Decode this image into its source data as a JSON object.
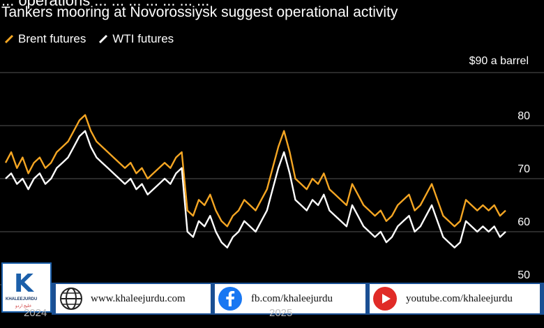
{
  "headline_partial": "... operations ... ... ... ... ... ... ...",
  "subtitle": "Tankers mooring at Novorossiysk suggest operational activity",
  "unit_label": "$90 a barrel",
  "colors": {
    "brent": "#f5a623",
    "wti": "#ffffff",
    "background": "#000000",
    "grid": "#555555"
  },
  "x_axis": {
    "labels": [
      "2024",
      "2025"
    ]
  },
  "social": {
    "website": "www.khaleejurdu.com",
    "facebook": "fb.com/khaleejurdu",
    "youtube": "youtube.com/khaleejurdu"
  },
  "logo": {
    "name": "KHALEEJURDU",
    "arabic": "خليج اردو"
  },
  "chart_data": {
    "type": "line",
    "ylim": [
      50,
      90
    ],
    "yticks": [
      50,
      60,
      70,
      80
    ],
    "grid": true,
    "legend_placement": "top-left",
    "series": [
      {
        "name": "Brent futures",
        "color": "#f5a623",
        "values": [
          73,
          75,
          72,
          74,
          71,
          73,
          74,
          72,
          73,
          75,
          76,
          77,
          79,
          81,
          82,
          79,
          77,
          76,
          75,
          74,
          73,
          72,
          73,
          71,
          72,
          70,
          71,
          72,
          73,
          72,
          74,
          75,
          64,
          63,
          66,
          65,
          67,
          64,
          62,
          61,
          63,
          64,
          66,
          65,
          64,
          66,
          68,
          72,
          76,
          79,
          75,
          70,
          69,
          68,
          70,
          69,
          71,
          68,
          67,
          66,
          65,
          69,
          67,
          65,
          64,
          63,
          64,
          62,
          63,
          65,
          66,
          67,
          64,
          65,
          67,
          69,
          66,
          63,
          62,
          61,
          62,
          66,
          65,
          64,
          65,
          64,
          65,
          63,
          64
        ]
      },
      {
        "name": "WTI futures",
        "color": "#ffffff",
        "values": [
          70,
          71,
          69,
          70,
          68,
          70,
          71,
          69,
          70,
          72,
          73,
          74,
          76,
          78,
          79,
          76,
          74,
          73,
          72,
          71,
          70,
          69,
          70,
          68,
          69,
          67,
          68,
          69,
          70,
          69,
          71,
          72,
          60,
          59,
          62,
          61,
          63,
          60,
          58,
          57,
          59,
          60,
          62,
          61,
          60,
          62,
          64,
          68,
          72,
          75,
          71,
          66,
          65,
          64,
          66,
          65,
          67,
          64,
          63,
          62,
          61,
          65,
          63,
          61,
          60,
          59,
          60,
          58,
          59,
          61,
          62,
          63,
          60,
          61,
          63,
          65,
          62,
          59,
          58,
          57,
          58,
          62,
          61,
          60,
          61,
          60,
          61,
          59,
          60
        ]
      }
    ]
  }
}
